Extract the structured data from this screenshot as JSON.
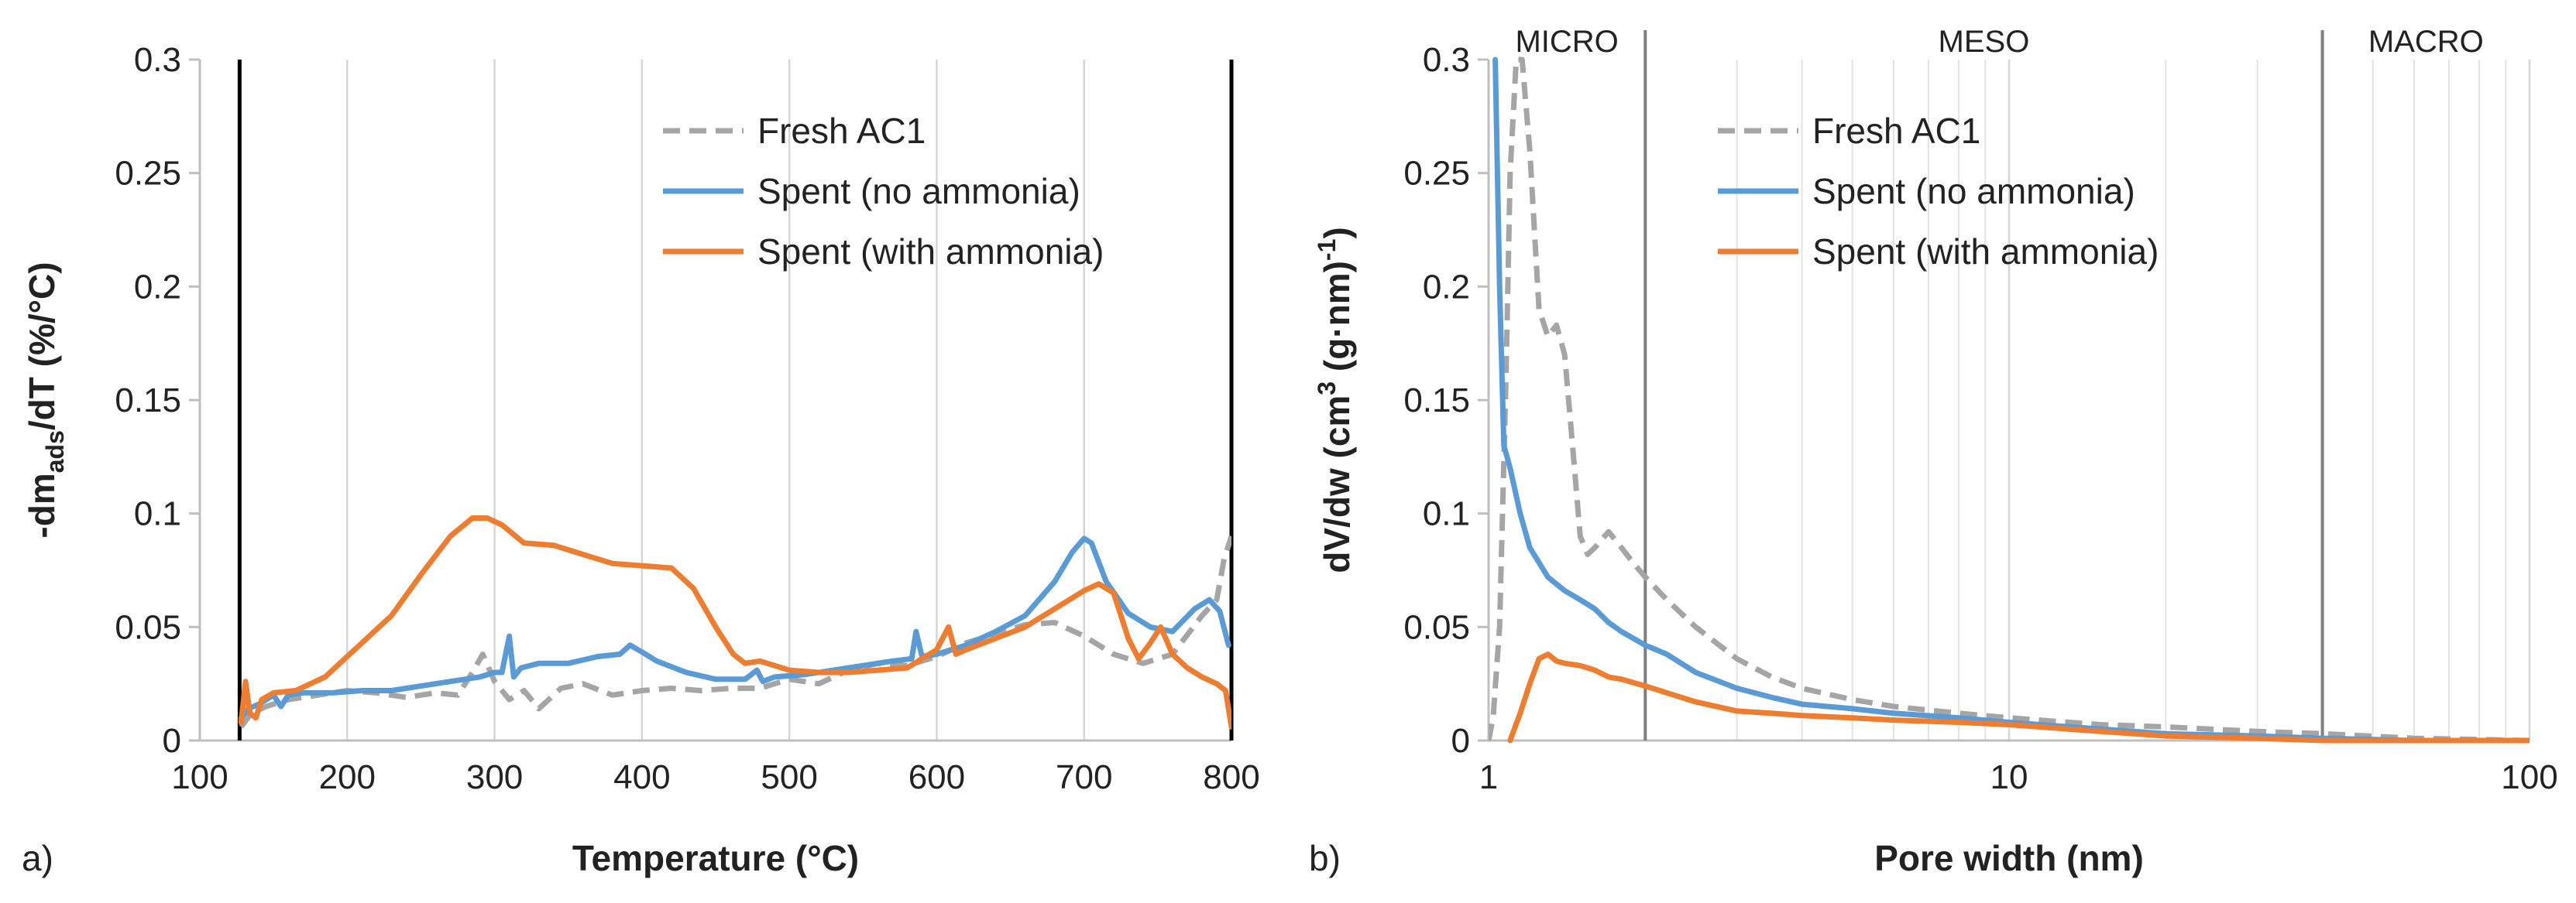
{
  "chart_data": [
    {
      "type": "line",
      "panel_label": "a)",
      "xlabel": "Temperature (°C)",
      "ylabel": {
        "prefix": "-dm",
        "subscript": "ads",
        "suffix": "/dT (%/°C)"
      },
      "xlim": [
        100,
        800
      ],
      "ylim": [
        0,
        0.3
      ],
      "x_ticks": [
        100,
        200,
        300,
        400,
        500,
        600,
        700,
        800
      ],
      "y_ticks": [
        0,
        0.05,
        0.1,
        0.15,
        0.2,
        0.25,
        0.3
      ],
      "y_tick_labels": [
        "0",
        "0.05",
        "0.1",
        "0.15",
        "0.2",
        "0.25",
        "0.3"
      ],
      "vertical_lines": [
        127,
        800
      ],
      "legend_position": "top-right",
      "series": [
        {
          "name": "Fresh AC1",
          "color": "#a5a5a5",
          "dash": "dashed",
          "x": [
            128,
            135,
            145,
            160,
            180,
            200,
            220,
            240,
            260,
            275,
            285,
            292,
            300,
            310,
            320,
            330,
            345,
            360,
            380,
            400,
            420,
            440,
            460,
            480,
            500,
            520,
            540,
            560,
            580,
            600,
            620,
            640,
            660,
            680,
            700,
            720,
            740,
            760,
            780,
            790,
            795,
            800
          ],
          "y": [
            0.006,
            0.012,
            0.015,
            0.018,
            0.02,
            0.022,
            0.021,
            0.019,
            0.021,
            0.02,
            0.03,
            0.038,
            0.026,
            0.018,
            0.022,
            0.014,
            0.023,
            0.025,
            0.02,
            0.022,
            0.023,
            0.022,
            0.023,
            0.023,
            0.027,
            0.025,
            0.031,
            0.034,
            0.033,
            0.037,
            0.043,
            0.047,
            0.051,
            0.052,
            0.046,
            0.038,
            0.034,
            0.038,
            0.055,
            0.062,
            0.08,
            0.09
          ]
        },
        {
          "name": "Spent (no ammonia)",
          "color": "#5b9bd5",
          "dash": "solid",
          "x": [
            128,
            133,
            140,
            150,
            155,
            160,
            170,
            190,
            210,
            230,
            250,
            270,
            290,
            300,
            305,
            310,
            313,
            318,
            330,
            350,
            370,
            385,
            392,
            400,
            410,
            430,
            450,
            470,
            478,
            482,
            490,
            510,
            530,
            550,
            570,
            583,
            586,
            590,
            600,
            620,
            640,
            660,
            680,
            692,
            700,
            705,
            715,
            730,
            745,
            760,
            775,
            785,
            792,
            798
          ],
          "y": [
            0.01,
            0.014,
            0.016,
            0.02,
            0.015,
            0.02,
            0.021,
            0.021,
            0.022,
            0.022,
            0.024,
            0.026,
            0.028,
            0.03,
            0.03,
            0.046,
            0.028,
            0.032,
            0.034,
            0.034,
            0.037,
            0.038,
            0.042,
            0.039,
            0.035,
            0.03,
            0.027,
            0.027,
            0.031,
            0.026,
            0.028,
            0.029,
            0.031,
            0.033,
            0.035,
            0.036,
            0.048,
            0.037,
            0.038,
            0.042,
            0.048,
            0.055,
            0.07,
            0.083,
            0.089,
            0.087,
            0.07,
            0.056,
            0.05,
            0.048,
            0.058,
            0.062,
            0.057,
            0.042
          ]
        },
        {
          "name": "Spent (with ammonia)",
          "color": "#ed7d31",
          "dash": "solid",
          "x": [
            128,
            131,
            134,
            138,
            142,
            150,
            165,
            185,
            205,
            230,
            250,
            270,
            285,
            295,
            305,
            320,
            340,
            360,
            380,
            400,
            420,
            435,
            450,
            462,
            470,
            480,
            500,
            520,
            540,
            560,
            580,
            600,
            608,
            613,
            620,
            640,
            660,
            680,
            700,
            710,
            720,
            730,
            737,
            745,
            752,
            760,
            770,
            780,
            790,
            796,
            800
          ],
          "y": [
            0.008,
            0.026,
            0.012,
            0.01,
            0.018,
            0.021,
            0.022,
            0.028,
            0.04,
            0.055,
            0.073,
            0.09,
            0.098,
            0.098,
            0.095,
            0.087,
            0.086,
            0.082,
            0.078,
            0.077,
            0.076,
            0.067,
            0.05,
            0.038,
            0.034,
            0.035,
            0.031,
            0.03,
            0.03,
            0.031,
            0.032,
            0.04,
            0.05,
            0.038,
            0.04,
            0.045,
            0.05,
            0.058,
            0.066,
            0.069,
            0.065,
            0.045,
            0.036,
            0.043,
            0.05,
            0.038,
            0.032,
            0.028,
            0.025,
            0.022,
            0.006
          ]
        }
      ]
    },
    {
      "type": "line",
      "panel_label": "b)",
      "xscale": "log",
      "xlabel": "Pore width (nm)",
      "ylabel": {
        "prefix": "dV/dw (cm",
        "superscript1": "3",
        "middle": " (g·nm)",
        "superscript2": "-1",
        "suffix": ")"
      },
      "xlim": [
        1,
        100
      ],
      "ylim": [
        0,
        0.3
      ],
      "x_ticks": [
        1,
        10,
        100
      ],
      "y_ticks": [
        0,
        0.05,
        0.1,
        0.15,
        0.2,
        0.25,
        0.3
      ],
      "y_tick_labels": [
        "0",
        "0.05",
        "0.1",
        "0.15",
        "0.2",
        "0.25",
        "0.3"
      ],
      "region_boundaries": [
        2,
        40
      ],
      "regions": [
        {
          "label": "MICRO",
          "from": 1,
          "to": 2
        },
        {
          "label": "MESO",
          "from": 2,
          "to": 40
        },
        {
          "label": "MACRO",
          "from": 40,
          "to": 100
        }
      ],
      "legend_position": "top-right",
      "series": [
        {
          "name": "Fresh AC1",
          "color": "#a5a5a5",
          "dash": "dashed",
          "x": [
            1.0,
            1.02,
            1.05,
            1.08,
            1.1,
            1.13,
            1.16,
            1.2,
            1.25,
            1.3,
            1.35,
            1.4,
            1.45,
            1.5,
            1.55,
            1.6,
            1.7,
            1.8,
            1.9,
            2.0,
            2.2,
            2.5,
            3.0,
            3.5,
            4.0,
            5.0,
            6.0,
            8.0,
            10,
            15,
            20,
            30,
            40,
            60,
            100
          ],
          "y": [
            0.0,
            0.01,
            0.05,
            0.16,
            0.25,
            0.3,
            0.3,
            0.26,
            0.19,
            0.178,
            0.183,
            0.17,
            0.13,
            0.09,
            0.082,
            0.085,
            0.092,
            0.085,
            0.078,
            0.072,
            0.062,
            0.05,
            0.036,
            0.028,
            0.023,
            0.018,
            0.015,
            0.012,
            0.01,
            0.007,
            0.006,
            0.004,
            0.003,
            0.001,
            0.0
          ]
        },
        {
          "name": "Spent (no ammonia)",
          "color": "#5b9bd5",
          "dash": "solid",
          "x": [
            1.03,
            1.05,
            1.07,
            1.1,
            1.15,
            1.2,
            1.3,
            1.4,
            1.5,
            1.6,
            1.7,
            1.8,
            2.0,
            2.2,
            2.5,
            3.0,
            3.5,
            4.0,
            5.0,
            6.0,
            8.0,
            10,
            15,
            20,
            30,
            40,
            60,
            100
          ],
          "y": [
            0.3,
            0.2,
            0.13,
            0.12,
            0.1,
            0.085,
            0.072,
            0.066,
            0.062,
            0.058,
            0.052,
            0.048,
            0.042,
            0.038,
            0.03,
            0.023,
            0.019,
            0.016,
            0.014,
            0.012,
            0.01,
            0.008,
            0.005,
            0.003,
            0.002,
            0.001,
            0.0,
            0.0
          ]
        },
        {
          "name": "Spent (with ammonia)",
          "color": "#ed7d31",
          "dash": "solid",
          "x": [
            1.1,
            1.15,
            1.2,
            1.25,
            1.3,
            1.35,
            1.4,
            1.5,
            1.6,
            1.7,
            1.8,
            2.0,
            2.2,
            2.5,
            3.0,
            3.5,
            4.0,
            5.0,
            6.0,
            8.0,
            10,
            15,
            20,
            30,
            40,
            60,
            100
          ],
          "y": [
            0.0,
            0.012,
            0.025,
            0.036,
            0.038,
            0.035,
            0.034,
            0.033,
            0.031,
            0.028,
            0.027,
            0.024,
            0.021,
            0.017,
            0.013,
            0.012,
            0.011,
            0.01,
            0.009,
            0.008,
            0.007,
            0.004,
            0.002,
            0.001,
            0.0,
            0.0,
            0.0
          ]
        }
      ]
    }
  ]
}
